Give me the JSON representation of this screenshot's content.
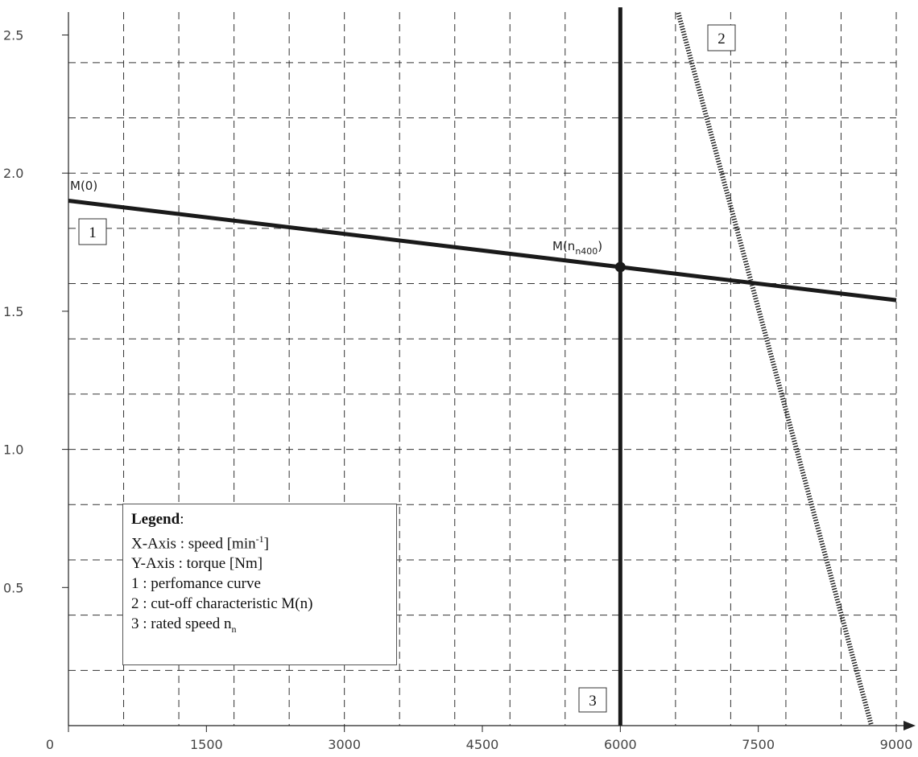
{
  "chart_data": {
    "type": "line",
    "xlim": [
      0,
      9000
    ],
    "ylim": [
      0,
      2.6
    ],
    "x_ticks": [
      "0",
      "1500",
      "3000",
      "4500",
      "6000",
      "7500",
      "9000"
    ],
    "y_ticks": [
      "0.5",
      "1.0",
      "1.5",
      "2.0",
      "2.5"
    ],
    "grid": true,
    "series": [
      {
        "id": "1",
        "style": "solid",
        "points": [
          [
            0,
            1.9
          ],
          [
            9000,
            1.54
          ]
        ]
      },
      {
        "id": "2",
        "style": "dotted",
        "points": [
          [
            6630,
            2.58
          ],
          [
            8730,
            0
          ]
        ]
      },
      {
        "id": "3",
        "style": "solid",
        "points": [
          [
            6000,
            0
          ],
          [
            6000,
            2.6
          ]
        ]
      }
    ],
    "marker": {
      "x": 6000,
      "y": 1.66
    },
    "annotations": {
      "m0": "M(0)",
      "mn_base": "M(n",
      "mn_sub": "n400",
      "mn_close": ")"
    },
    "curve_labels": [
      "1",
      "2",
      "3"
    ]
  },
  "legend": {
    "title": "Legend",
    "title_suffix": ":",
    "x_axis_prefix": "X-Axis : speed [min",
    "x_axis_sup": "-1",
    "x_axis_suffix": "]",
    "y_axis": "Y-Axis : torque [Nm]",
    "item1": "1 : perfomance curve",
    "item2": "2 : cut-off characteristic M(n)",
    "item3_prefix": "3 : rated speed n",
    "item3_sub": "n"
  },
  "colors": {
    "curve": "#1a1a1a",
    "grid": "#333333",
    "axis": "#222222"
  }
}
